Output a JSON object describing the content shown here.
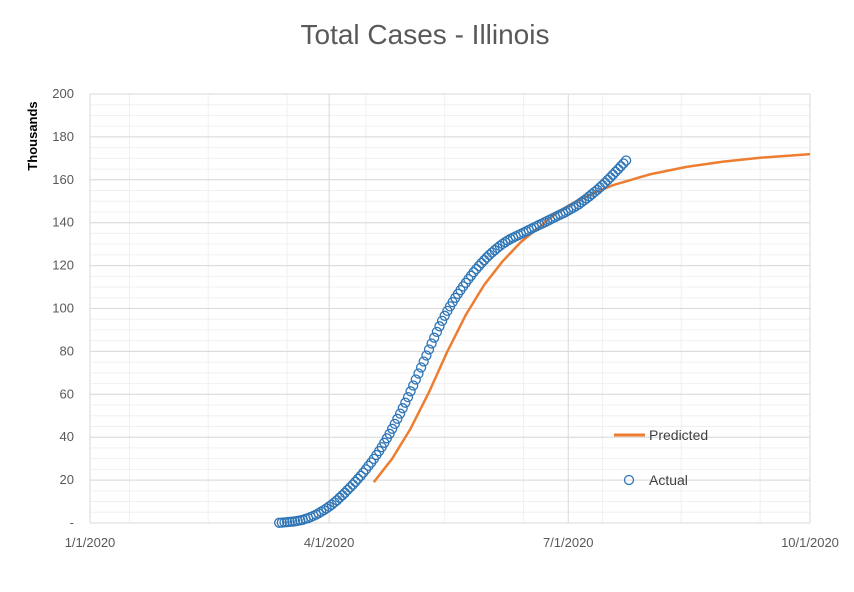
{
  "chart_data": {
    "type": "line",
    "title": "Total Cases - Illinois",
    "ylabel": "Thousands",
    "xlabel": "",
    "x_ticks": [
      {
        "date": "2020-01-01",
        "label": "1/1/2020"
      },
      {
        "date": "2020-04-01",
        "label": "4/1/2020"
      },
      {
        "date": "2020-07-01",
        "label": "7/1/2020"
      },
      {
        "date": "2020-10-01",
        "label": "10/1/2020"
      }
    ],
    "xlim": [
      "2020-01-01",
      "2020-10-01"
    ],
    "ylim": [
      0,
      200
    ],
    "y_ticks": [
      {
        "value": 0,
        "label": "-"
      },
      {
        "value": 20,
        "label": "20"
      },
      {
        "value": 40,
        "label": "40"
      },
      {
        "value": 60,
        "label": "60"
      },
      {
        "value": 80,
        "label": "80"
      },
      {
        "value": 100,
        "label": "100"
      },
      {
        "value": 120,
        "label": "120"
      },
      {
        "value": 140,
        "label": "140"
      },
      {
        "value": 160,
        "label": "160"
      },
      {
        "value": 180,
        "label": "180"
      },
      {
        "value": 200,
        "label": "200"
      }
    ],
    "grid": true,
    "legend_position": "right",
    "series": [
      {
        "name": "Predicted",
        "style": "line",
        "color": "#ED7D31",
        "x": [
          "2020-04-18",
          "2020-04-25",
          "2020-05-02",
          "2020-05-09",
          "2020-05-16",
          "2020-05-23",
          "2020-05-30",
          "2020-06-06",
          "2020-06-13",
          "2020-06-20",
          "2020-06-27",
          "2020-07-04",
          "2020-07-11",
          "2020-07-18",
          "2020-07-25",
          "2020-08-01",
          "2020-08-15",
          "2020-08-29",
          "2020-09-12",
          "2020-09-26",
          "2020-10-01"
        ],
        "values": [
          19,
          30,
          44,
          61,
          80,
          97,
          111,
          122,
          131,
          138,
          145,
          150,
          154,
          157.5,
          160,
          162.5,
          166,
          168.5,
          170.3,
          171.5,
          172
        ]
      },
      {
        "name": "Actual",
        "style": "scatter",
        "color": "#2E75B6",
        "x": [
          "2020-03-13",
          "2020-03-14",
          "2020-03-15",
          "2020-03-16",
          "2020-03-17",
          "2020-03-18",
          "2020-03-19",
          "2020-03-20",
          "2020-03-21",
          "2020-03-22",
          "2020-03-23",
          "2020-03-24",
          "2020-03-25",
          "2020-03-26",
          "2020-03-27",
          "2020-03-28",
          "2020-03-29",
          "2020-03-30",
          "2020-03-31",
          "2020-04-01",
          "2020-04-02",
          "2020-04-03",
          "2020-04-04",
          "2020-04-05",
          "2020-04-06",
          "2020-04-07",
          "2020-04-08",
          "2020-04-09",
          "2020-04-10",
          "2020-04-11",
          "2020-04-12",
          "2020-04-13",
          "2020-04-14",
          "2020-04-15",
          "2020-04-16",
          "2020-04-17",
          "2020-04-18",
          "2020-04-19",
          "2020-04-20",
          "2020-04-21",
          "2020-04-22",
          "2020-04-23",
          "2020-04-24",
          "2020-04-25",
          "2020-04-26",
          "2020-04-27",
          "2020-04-28",
          "2020-04-29",
          "2020-04-30",
          "2020-05-01",
          "2020-05-02",
          "2020-05-03",
          "2020-05-04",
          "2020-05-05",
          "2020-05-06",
          "2020-05-07",
          "2020-05-08",
          "2020-05-09",
          "2020-05-10",
          "2020-05-11",
          "2020-05-12",
          "2020-05-13",
          "2020-05-14",
          "2020-05-15",
          "2020-05-16",
          "2020-05-17",
          "2020-05-18",
          "2020-05-19",
          "2020-05-20",
          "2020-05-21",
          "2020-05-22",
          "2020-05-23",
          "2020-05-24",
          "2020-05-25",
          "2020-05-26",
          "2020-05-27",
          "2020-05-28",
          "2020-05-29",
          "2020-05-30",
          "2020-05-31",
          "2020-06-01",
          "2020-06-02",
          "2020-06-03",
          "2020-06-04",
          "2020-06-05",
          "2020-06-06",
          "2020-06-07",
          "2020-06-08",
          "2020-06-09",
          "2020-06-10",
          "2020-06-11",
          "2020-06-12",
          "2020-06-13",
          "2020-06-14",
          "2020-06-15",
          "2020-06-16",
          "2020-06-17",
          "2020-06-18",
          "2020-06-19",
          "2020-06-20",
          "2020-06-21",
          "2020-06-22",
          "2020-06-23",
          "2020-06-24",
          "2020-06-25",
          "2020-06-26",
          "2020-06-27",
          "2020-06-28",
          "2020-06-29",
          "2020-06-30",
          "2020-07-01",
          "2020-07-02",
          "2020-07-03",
          "2020-07-04",
          "2020-07-05",
          "2020-07-06",
          "2020-07-07",
          "2020-07-08",
          "2020-07-09",
          "2020-07-10",
          "2020-07-11",
          "2020-07-12",
          "2020-07-13",
          "2020-07-14",
          "2020-07-15",
          "2020-07-16",
          "2020-07-17",
          "2020-07-18",
          "2020-07-19",
          "2020-07-20",
          "2020-07-21",
          "2020-07-22",
          "2020-07-23"
        ],
        "values": [
          0.1,
          0.2,
          0.3,
          0.4,
          0.5,
          0.6,
          0.8,
          1.0,
          1.2,
          1.5,
          1.9,
          2.3,
          2.8,
          3.3,
          3.9,
          4.5,
          5.3,
          6.0,
          6.8,
          7.7,
          8.6,
          9.6,
          10.6,
          11.8,
          12.9,
          14.1,
          15.4,
          16.6,
          17.9,
          19.2,
          20.6,
          22.0,
          23.5,
          25.0,
          26.6,
          28.2,
          29.9,
          31.7,
          33.5,
          35.4,
          37.4,
          39.5,
          41.6,
          43.9,
          46.2,
          48.6,
          51.0,
          53.5,
          56.1,
          58.7,
          61.4,
          64.1,
          66.9,
          69.7,
          72.5,
          75.3,
          78.1,
          80.9,
          83.7,
          86.4,
          89.1,
          91.7,
          94.2,
          96.6,
          98.9,
          101.0,
          103.0,
          105.0,
          106.8,
          108.6,
          110.3,
          112.0,
          113.7,
          115.3,
          116.9,
          118.4,
          119.8,
          121.2,
          122.5,
          123.8,
          125.0,
          126.1,
          127.2,
          128.2,
          129.2,
          130.1,
          130.9,
          131.7,
          132.4,
          133.0,
          133.6,
          134.2,
          134.8,
          135.4,
          136.0,
          136.6,
          137.2,
          137.8,
          138.4,
          139.0,
          139.6,
          140.2,
          140.8,
          141.4,
          142.0,
          142.6,
          143.2,
          143.8,
          144.4,
          145.0,
          145.7,
          146.4,
          147.1,
          147.8,
          148.6,
          149.5,
          150.4,
          151.3,
          152.3,
          153.3,
          154.3,
          155.3,
          156.4,
          157.5,
          158.7,
          159.9,
          161.1,
          162.4,
          163.7,
          165.0,
          166.3,
          167.6,
          169.0
        ]
      }
    ]
  }
}
